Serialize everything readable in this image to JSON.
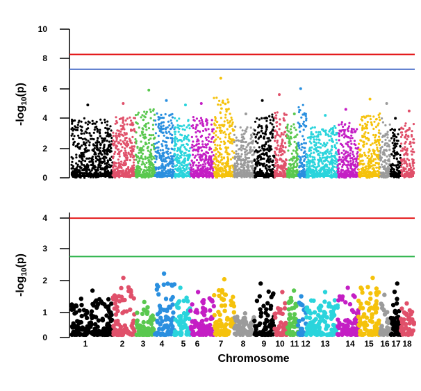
{
  "chart_data": [
    {
      "type": "scatter",
      "subtype": "manhattan",
      "ylabel": "-log10(p)",
      "ylim": [
        0,
        10
      ],
      "yticks": [
        "0",
        "2",
        "4",
        "6",
        "8",
        "10"
      ],
      "thresholds": [
        {
          "value": 8.3,
          "color": "#e41a1c"
        },
        {
          "value": 7.3,
          "color": "#4a6fc9"
        }
      ],
      "chromosomes": [
        "1",
        "2",
        "3",
        "4",
        "5",
        "6",
        "7",
        "8",
        "9",
        "10",
        "11",
        "12",
        "13",
        "14",
        "15",
        "16",
        "17",
        "18"
      ],
      "chromosome_peaks": [
        4.9,
        5.0,
        5.9,
        5.2,
        4.9,
        5.0,
        6.7,
        4.3,
        5.2,
        5.6,
        4.3,
        6.0,
        4.2,
        4.6,
        5.3,
        5.0,
        4.0,
        4.5
      ],
      "chromosome_colors": [
        "#000000",
        "#e0506a",
        "#5ac84f",
        "#2a8fdf",
        "#2ad4dc",
        "#c41ec4",
        "#f5c20c",
        "#9b9b9b",
        "#000000",
        "#e0506a",
        "#5ac84f",
        "#2a8fdf",
        "#2ad4dc",
        "#c41ec4",
        "#f5c20c",
        "#9b9b9b",
        "#000000",
        "#e0506a"
      ]
    },
    {
      "type": "scatter",
      "subtype": "manhattan",
      "ylabel": "-log10(p)",
      "xlabel": "Chromosome",
      "ylim": [
        0,
        4.4
      ],
      "yticks": [
        "0",
        "1",
        "2",
        "3",
        "4"
      ],
      "thresholds": [
        {
          "value": 4.2,
          "color": "#e41a1c"
        },
        {
          "value": 2.85,
          "color": "#2bb34a"
        }
      ],
      "chromosomes": [
        "1",
        "2",
        "3",
        "4",
        "5",
        "6",
        "7",
        "8",
        "9",
        "10",
        "11",
        "12",
        "13",
        "14",
        "15",
        "16",
        "17",
        "18"
      ],
      "chromosome_peaks": [
        1.65,
        2.1,
        1.25,
        2.25,
        1.75,
        1.6,
        2.05,
        0.85,
        1.9,
        1.6,
        1.65,
        1.45,
        1.6,
        1.75,
        2.1,
        1.5,
        1.9,
        1.2
      ],
      "chromosome_colors": [
        "#000000",
        "#e0506a",
        "#5ac84f",
        "#2a8fdf",
        "#2ad4dc",
        "#c41ec4",
        "#f5c20c",
        "#9b9b9b",
        "#000000",
        "#e0506a",
        "#5ac84f",
        "#2a8fdf",
        "#2ad4dc",
        "#c41ec4",
        "#f5c20c",
        "#9b9b9b",
        "#000000",
        "#e0506a"
      ]
    }
  ],
  "y_title_base": "-log",
  "y_title_sub": "10",
  "y_title_rest": "(p)",
  "x_title": "Chromosome"
}
